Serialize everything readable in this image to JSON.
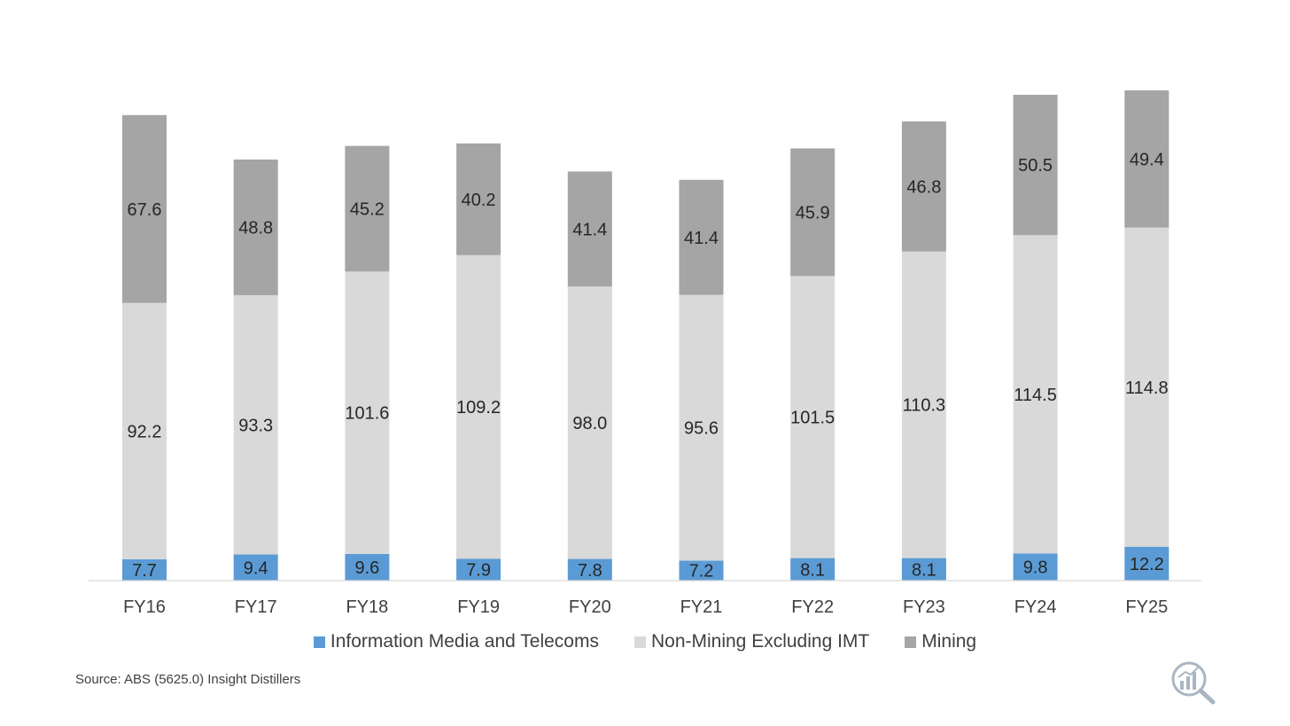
{
  "chart_data": {
    "type": "bar",
    "stacked": true,
    "categories": [
      "FY16",
      "FY17",
      "FY18",
      "FY19",
      "FY20",
      "FY21",
      "FY22",
      "FY23",
      "FY24",
      "FY25"
    ],
    "series": [
      {
        "name": "Information Media and Telecoms",
        "color": "#5b9bd5",
        "values": [
          7.7,
          9.4,
          9.6,
          7.9,
          7.8,
          7.2,
          8.1,
          8.1,
          9.8,
          12.2
        ],
        "labels": [
          "7.7",
          "9.4",
          "9.6",
          "7.9",
          "7.8",
          "7.2",
          "8.1",
          "8.1",
          "9.8",
          "12.2"
        ]
      },
      {
        "name": "Non-Mining Excluding IMT",
        "color": "#d9d9d9",
        "values": [
          92.2,
          93.3,
          101.6,
          109.2,
          98.0,
          95.6,
          101.5,
          110.3,
          114.5,
          114.8
        ],
        "labels": [
          "92.2",
          "93.3",
          "101.6",
          "109.2",
          "98.0",
          "95.6",
          "101.5",
          "110.3",
          "114.5",
          "114.8"
        ]
      },
      {
        "name": "Mining",
        "color": "#a5a5a5",
        "values": [
          67.6,
          48.8,
          45.2,
          40.2,
          41.4,
          41.4,
          45.9,
          46.8,
          50.5,
          49.4
        ],
        "labels": [
          "67.6",
          "48.8",
          "45.2",
          "40.2",
          "41.4",
          "41.4",
          "45.9",
          "46.8",
          "50.5",
          "49.4"
        ]
      }
    ],
    "ylim": [
      0,
      177
    ],
    "grid": false,
    "legend_position": "bottom"
  },
  "source": "Source: ABS (5625.0) Insight Distillers",
  "logo_icon": "magnifier-chart-icon"
}
